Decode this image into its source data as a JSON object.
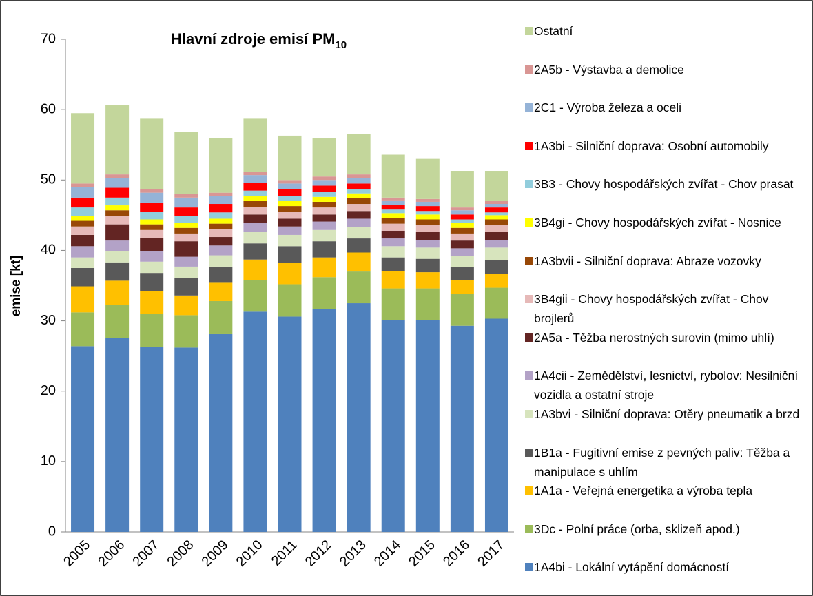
{
  "chart_data": {
    "type": "stacked_bar",
    "title": "Hlavní zdroje emisí PM",
    "title_subscript": "10",
    "y_label": "emise [kt]",
    "categories": [
      "2005",
      "2006",
      "2007",
      "2008",
      "2009",
      "2010",
      "2011",
      "2012",
      "2013",
      "2014",
      "2015",
      "2016",
      "2017"
    ],
    "ylim": [
      0,
      70
    ],
    "yticks": [
      0,
      10,
      20,
      30,
      40,
      50,
      60,
      70
    ],
    "grid": false,
    "series": [
      {
        "name": "1A4bi - Lokální vytápění domácností",
        "color": "#4f81bd",
        "values": [
          26.4,
          27.6,
          26.3,
          26.2,
          28.1,
          31.3,
          30.6,
          31.7,
          32.5,
          30.1,
          30.1,
          29.3,
          30.3
        ]
      },
      {
        "name": "3Dc - Polní práce (orba, sklizeň apod.)",
        "color": "#9bbb59",
        "values": [
          4.8,
          4.7,
          4.7,
          4.6,
          4.7,
          4.5,
          4.6,
          4.5,
          4.5,
          4.5,
          4.5,
          4.5,
          4.4
        ]
      },
      {
        "name": "1A1a - Veřejná energetika a výroba tepla",
        "color": "#ffc000",
        "values": [
          3.7,
          3.4,
          3.2,
          2.8,
          2.6,
          2.9,
          3.0,
          2.8,
          2.7,
          2.5,
          2.3,
          2.0,
          2.0
        ]
      },
      {
        "name": "1B1a - Fugitivní emise z pevných paliv: Těžba a manipulace s uhlím",
        "color": "#595959",
        "values": [
          2.6,
          2.6,
          2.6,
          2.5,
          2.3,
          2.3,
          2.4,
          2.3,
          2.0,
          1.9,
          1.9,
          1.8,
          1.9
        ]
      },
      {
        "name": "1A3bvi - Silniční doprava: Otěry pneumatik a brzd",
        "color": "#d7e4bd",
        "values": [
          1.5,
          1.6,
          1.6,
          1.6,
          1.6,
          1.6,
          1.6,
          1.6,
          1.6,
          1.6,
          1.6,
          1.6,
          1.8
        ]
      },
      {
        "name": "1A4cii - Zemědělství, lesnictví, rybolov: Nesilniční vozidla a ostatní stroje",
        "color": "#b3a2c7",
        "values": [
          1.6,
          1.5,
          1.5,
          1.4,
          1.4,
          1.3,
          1.2,
          1.2,
          1.2,
          1.1,
          1.1,
          1.1,
          1.1
        ]
      },
      {
        "name": "2A5a - Těžba nerostných surovin (mimo uhlí)",
        "color": "#632523",
        "values": [
          1.6,
          2.3,
          1.9,
          2.2,
          1.2,
          1.2,
          1.1,
          1.0,
          1.1,
          1.1,
          1.1,
          1.1,
          1.1
        ]
      },
      {
        "name": "3B4gii - Chovy hospodářských zvířat - Chov brojlerů",
        "color": "#e6b9b8",
        "values": [
          1.2,
          1.2,
          1.1,
          1.1,
          1.1,
          1.1,
          1.0,
          1.0,
          1.0,
          1.0,
          1.0,
          1.0,
          1.0
        ]
      },
      {
        "name": "1A3bvii - Silniční doprava: Abraze vozovky",
        "color": "#984807",
        "values": [
          0.8,
          0.8,
          0.8,
          0.8,
          0.8,
          0.8,
          0.8,
          0.8,
          0.8,
          0.8,
          0.8,
          0.8,
          0.8
        ]
      },
      {
        "name": "3B4gi - Chovy hospodářských zvířat - Nosnice",
        "color": "#ffff00",
        "values": [
          0.7,
          0.7,
          0.7,
          0.7,
          0.7,
          0.7,
          0.7,
          0.7,
          0.7,
          0.7,
          0.7,
          0.7,
          0.6
        ]
      },
      {
        "name": "3B3 - Chovy hospodářských zvířat - Chov prasat",
        "color": "#92cddc",
        "values": [
          1.2,
          1.1,
          1.1,
          1.0,
          0.9,
          0.8,
          0.7,
          0.7,
          0.6,
          0.5,
          0.5,
          0.5,
          0.4
        ]
      },
      {
        "name": "1A3bi - Silniční doprava: Osobní automobily",
        "color": "#ff0000",
        "values": [
          1.4,
          1.4,
          1.3,
          1.2,
          1.2,
          1.1,
          1.0,
          0.9,
          0.8,
          0.7,
          0.7,
          0.7,
          0.7
        ]
      },
      {
        "name": "2C1 - Výroba železa a oceli",
        "color": "#95b3d7",
        "values": [
          1.5,
          1.4,
          1.4,
          1.4,
          1.1,
          1.1,
          0.8,
          0.8,
          0.8,
          0.6,
          0.6,
          0.6,
          0.5
        ]
      },
      {
        "name": "2A5b - Výstavba a demolice",
        "color": "#d99694",
        "values": [
          0.5,
          0.5,
          0.5,
          0.5,
          0.5,
          0.5,
          0.5,
          0.5,
          0.5,
          0.4,
          0.4,
          0.4,
          0.4
        ]
      },
      {
        "name": "Ostatní",
        "color": "#c3d69b",
        "values": [
          10.0,
          9.8,
          10.1,
          8.8,
          7.8,
          7.6,
          6.3,
          5.4,
          5.7,
          6.1,
          5.7,
          5.2,
          4.3
        ]
      }
    ]
  }
}
